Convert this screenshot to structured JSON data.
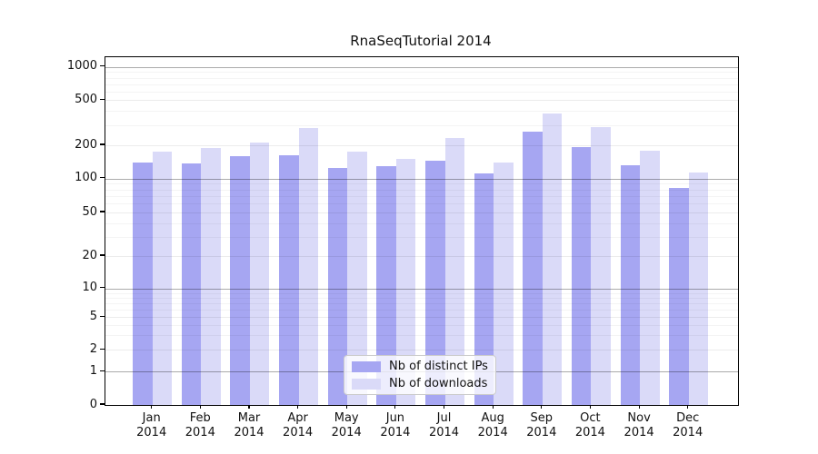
{
  "chart_data": {
    "type": "bar",
    "title": "RnaSeqTutorial 2014",
    "categories": [
      "Jan",
      "Feb",
      "Mar",
      "Apr",
      "May",
      "Jun",
      "Jul",
      "Aug",
      "Sep",
      "Oct",
      "Nov",
      "Dec"
    ],
    "x_year_label": "2014",
    "series": [
      {
        "name": "Nb of distinct IPs",
        "color": "#a6a6f2",
        "values": [
          141,
          136,
          160,
          164,
          126,
          130,
          146,
          112,
          266,
          191,
          131,
          83
        ]
      },
      {
        "name": "Nb of downloads",
        "color": "#dadaf8",
        "values": [
          174,
          190,
          212,
          284,
          174,
          152,
          232,
          140,
          380,
          287,
          178,
          113
        ]
      }
    ],
    "xlabel": "",
    "ylabel": "",
    "y_axis": {
      "scale": "symlog",
      "ticks": [
        0,
        1,
        2,
        5,
        10,
        20,
        50,
        100,
        200,
        500,
        1000
      ],
      "ylim": [
        0,
        1000
      ],
      "minor_tick_multipliers": [
        3,
        4,
        6,
        7,
        8,
        9
      ]
    },
    "grid": true,
    "legend_position": "lower center"
  }
}
